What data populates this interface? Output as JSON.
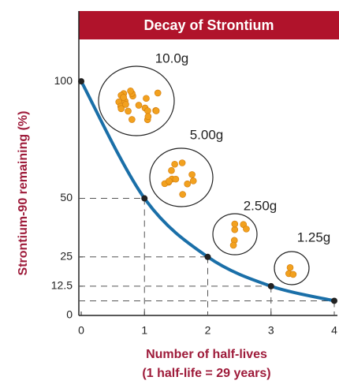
{
  "chart_data": {
    "type": "line",
    "title": "Decay of Strontium",
    "x_label": "Number of half-lives",
    "x_label_note": "(1 half-life = 29 years)",
    "y_label": "Strontium-90 remaining (%)",
    "x": [
      0,
      1,
      2,
      3,
      4
    ],
    "series": [
      {
        "color": "#1a6fa8",
        "values": [
          100,
          50,
          25,
          12.5,
          6.25
        ]
      }
    ],
    "annotations": [
      "10.0g",
      "5.00g",
      "2.50g",
      "1.25g"
    ],
    "xlim": [
      0,
      4
    ],
    "ylim": [
      0,
      130
    ],
    "xticks": [
      0,
      1,
      2,
      3,
      4
    ],
    "yticks": [
      0,
      12.5,
      25,
      50,
      100
    ]
  }
}
